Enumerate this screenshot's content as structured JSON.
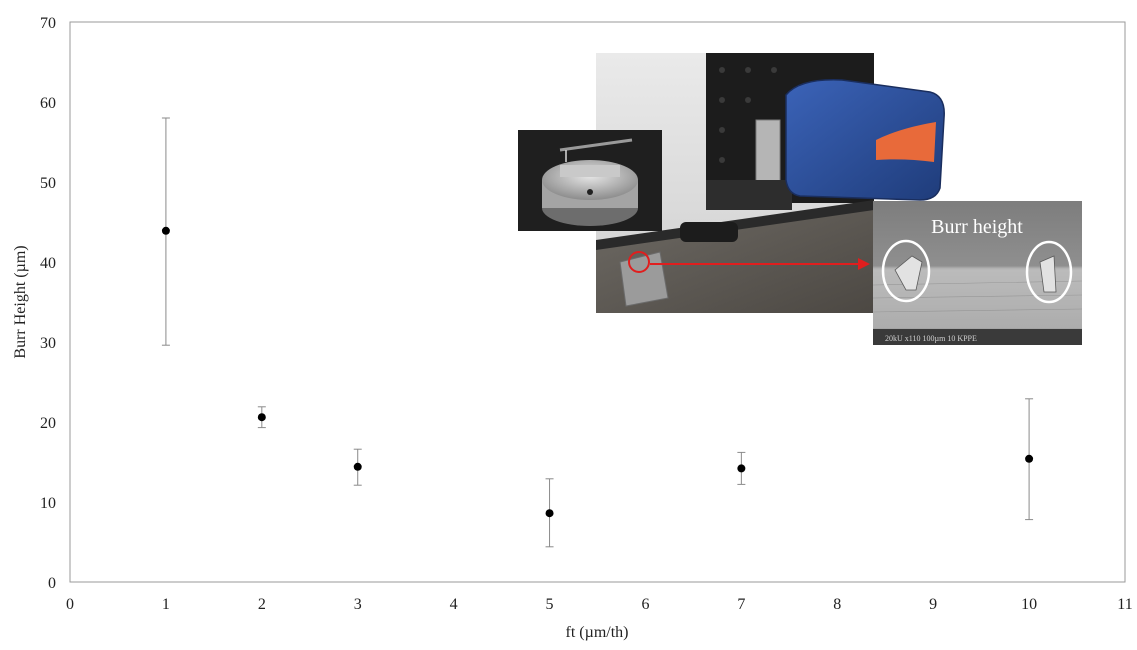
{
  "chart_data": {
    "type": "scatter",
    "xlabel": "ft (µm/th)",
    "ylabel": "Burr Height (µm)",
    "xlim": [
      0,
      11
    ],
    "ylim": [
      0,
      70
    ],
    "x_ticks": [
      0,
      1,
      2,
      3,
      4,
      5,
      6,
      7,
      8,
      9,
      10,
      11
    ],
    "y_ticks": [
      0,
      10,
      20,
      30,
      40,
      50,
      60,
      70
    ],
    "grid": false,
    "legend": "none",
    "series": [
      {
        "points": [
          {
            "x": 1,
            "y": 43.9,
            "err_low": 29.6,
            "err_high": 58.0
          },
          {
            "x": 2,
            "y": 20.6,
            "err_low": 19.3,
            "err_high": 21.9
          },
          {
            "x": 3,
            "y": 14.4,
            "err_low": 12.1,
            "err_high": 16.6
          },
          {
            "x": 5,
            "y": 8.6,
            "err_low": 4.4,
            "err_high": 12.9
          },
          {
            "x": 7,
            "y": 14.2,
            "err_low": 12.2,
            "err_high": 16.2
          },
          {
            "x": 10,
            "y": 15.4,
            "err_low": 7.8,
            "err_high": 22.9
          }
        ],
        "marker_color": "#000000",
        "errorbar_color": "#8a8a8a"
      }
    ],
    "inset": {
      "sem_label": "Burr height",
      "sem_scale_text": "20kU   x110  100µm    10 KPPE",
      "device_colors": {
        "body": "#2c4f9a",
        "accent": "#e86a3a",
        "arrow": "#e01e1e"
      }
    }
  }
}
